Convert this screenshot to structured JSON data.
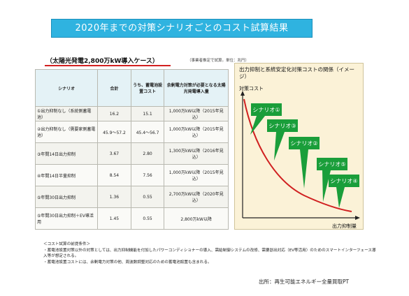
{
  "title": "2020年までの対策シナリオごとのコスト試算結果",
  "subtitle": "（太陽光発電2,800万kW導入ケース）",
  "unit_note": "（事業者推定で試算。単位：兆円）",
  "table": {
    "headers": [
      "シナリオ",
      "合計",
      "うち、蓄電池設置コスト",
      "余剰電力対策が必要となる太陽光発電導入量"
    ],
    "rows": [
      {
        "name": "①出力抑制なし（系統側蓄電池）",
        "total": "16.2",
        "battery": "15.1",
        "scope": "1,000万kW以降（2015年見込）"
      },
      {
        "name": "②出力抑制なし（需要家側蓄電池）",
        "total": "45.9〜57.2",
        "battery": "45.4〜56.7",
        "scope": "1,000万kW以降（2015年見込）"
      },
      {
        "name": "③年間14日出力抑制",
        "total": "3.67",
        "battery": "2.80",
        "scope": "1,300万kW以降（2016年見込）"
      },
      {
        "name": "④年間14日半量抑制",
        "total": "8.54",
        "battery": "7.56",
        "scope": "1,000万kW以降（2015年見込）"
      },
      {
        "name": "⑤年間30日出力抑制",
        "total": "1.36",
        "battery": "0.55",
        "scope": "2,700万kW以降（2020年見込）"
      },
      {
        "name": "⑤年間30日出力抑制＋EV導活用",
        "total": "1.45",
        "battery": "0.55",
        "scope": "2,800万kW以降"
      }
    ]
  },
  "panel": {
    "title": "出力抑制と系統安定化対策コストの関係（イメージ）",
    "y_label": "対策コスト",
    "x_label": "出力抑制量",
    "callouts": [
      "シナリオ①",
      "シナリオ③",
      "シナリオ②",
      "シナリオ⑤",
      "シナリオ④"
    ],
    "colors": {
      "callout": "#1a9e3a",
      "curve": "#d02020",
      "panel_bg": "#fbf2d7"
    }
  },
  "footnotes": {
    "heading": "＜コスト試算の前提条件＞",
    "note1": "・蓄電池設置対策以外の対策としては、出力抑制機能を付加したパワーコンディショナーの導入、需給制御システムの改修、需要創出対応（EV等活用）のためのスマートインターフェース導入等が想定される。",
    "note2": "・蓄電池設置コストには、余剰電力対策の他、周波数調整対応のための蓄電池設置も含まれる。"
  },
  "source": "出所：再生可能エネルギー全量買取PT"
}
